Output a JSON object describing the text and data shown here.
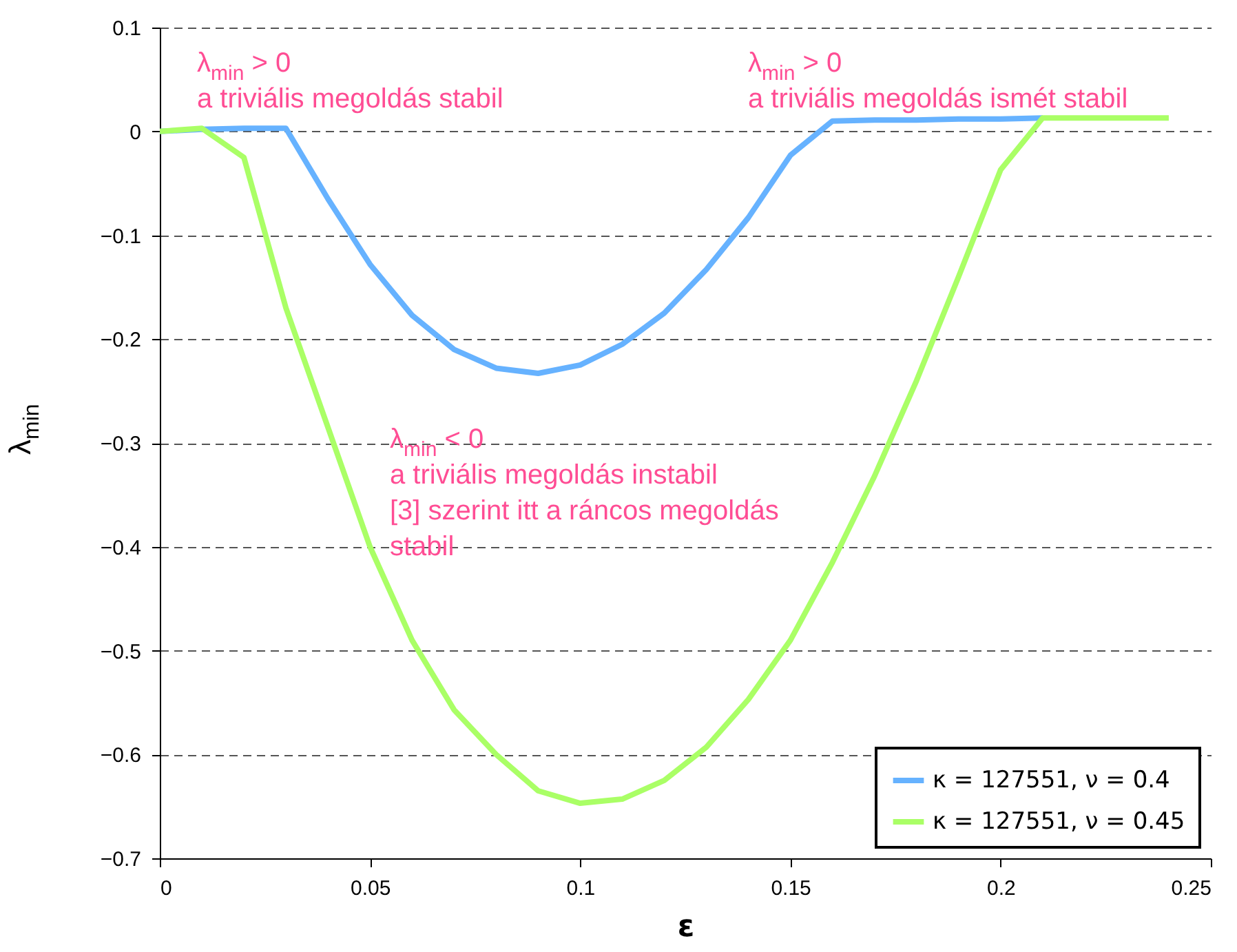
{
  "chart_data": {
    "type": "line",
    "xlabel": "ε",
    "ylabel": "λ$_{min}$",
    "xlim": [
      0,
      0.25
    ],
    "xticks": [
      0,
      0.05,
      0.1,
      0.15,
      0.2,
      0.25
    ],
    "ylim": [
      -0.7,
      0.1
    ],
    "yticks": [
      {
        "value": -0.7,
        "label": "−0.7"
      },
      {
        "value": -0.6,
        "label": "−0.6"
      },
      {
        "value": -0.5,
        "label": "−0.5"
      },
      {
        "value": -0.4,
        "label": "−0.4"
      },
      {
        "value": -0.3,
        "label": "−0.3"
      },
      {
        "value": -0.2,
        "label": "−0.2"
      },
      {
        "value": -0.1,
        "label": "−0.1"
      },
      0,
      0.1
    ],
    "grid": "y",
    "legend": "bottom right",
    "line_style": "solid",
    "marker": "none",
    "series": [
      {
        "name": "κ = 127551, ν = 0.4",
        "color": "#66b2ff",
        "x": [
          0,
          0.01,
          0.02,
          0.03,
          0.04,
          0.05,
          0.06,
          0.07,
          0.08,
          0.09,
          0.1,
          0.11,
          0.12,
          0.13,
          0.14,
          0.15,
          0.16,
          0.17,
          0.18,
          0.19,
          0.2,
          0.21
        ],
        "values": [
          0,
          0.002,
          0.003,
          0.003,
          -0.065,
          -0.128,
          -0.177,
          -0.21,
          -0.228,
          -0.233,
          -0.225,
          -0.205,
          -0.175,
          -0.133,
          -0.083,
          -0.023,
          0.01,
          0.011,
          0.011,
          0.012,
          0.012,
          0.013
        ]
      },
      {
        "name": "κ = 127551, ν = 0.45",
        "color": "#aaff66",
        "x": [
          0,
          0.01,
          0.02,
          0.03,
          0.04,
          0.05,
          0.06,
          0.07,
          0.08,
          0.09,
          0.1,
          0.11,
          0.12,
          0.13,
          0.14,
          0.15,
          0.16,
          0.17,
          0.18,
          0.19,
          0.2,
          0.21,
          0.22,
          0.23,
          0.24
        ],
        "values": [
          0,
          0.003,
          -0.025,
          -0.17,
          -0.285,
          -0.4,
          -0.49,
          -0.557,
          -0.6,
          -0.635,
          -0.647,
          -0.643,
          -0.625,
          -0.593,
          -0.547,
          -0.49,
          -0.415,
          -0.332,
          -0.24,
          -0.14,
          -0.037,
          0.013,
          0.013,
          0.013,
          0.013
        ]
      }
    ],
    "annotations": [
      "λ$_{min}$ > 0\na triviális megoldás stabil",
      "λ$_{min}$ > 0\na triviális megoldás ismét stabil",
      "λ$_{min}$ < 0\na triviális megoldás instabil\n[3] szerint itt a ráncos megoldás\nstabil"
    ]
  }
}
